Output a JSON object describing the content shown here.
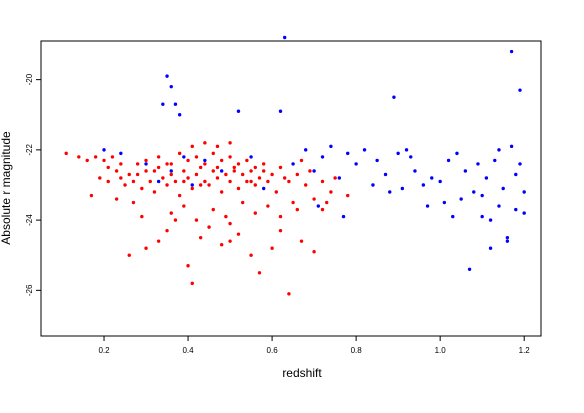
{
  "chart_data": {
    "type": "scatter",
    "title": "",
    "xlabel": "redshift",
    "ylabel": "Absolute r magnitude",
    "xlim": [
      0.05,
      1.24
    ],
    "ylim": [
      -27.3,
      -18.9
    ],
    "y_reversed": true,
    "grid": false,
    "x_ticks": [
      {
        "value": 0.2,
        "label": "0.2"
      },
      {
        "value": 0.4,
        "label": "0.4"
      },
      {
        "value": 0.6,
        "label": "0.6"
      },
      {
        "value": 0.8,
        "label": "0.8"
      },
      {
        "value": 1.0,
        "label": "1.0"
      },
      {
        "value": 1.2,
        "label": "1.2"
      }
    ],
    "y_ticks": [
      {
        "value": -20,
        "label": "-20"
      },
      {
        "value": -22,
        "label": "-22"
      },
      {
        "value": -24,
        "label": "-24"
      },
      {
        "value": -26,
        "label": "-26"
      }
    ],
    "series": [
      {
        "color": "#ff0000",
        "points": [
          [
            0.11,
            -22.1
          ],
          [
            0.14,
            -22.2
          ],
          [
            0.16,
            -22.3
          ],
          [
            0.17,
            -23.3
          ],
          [
            0.18,
            -22.2
          ],
          [
            0.19,
            -22.8
          ],
          [
            0.2,
            -22.3
          ],
          [
            0.21,
            -22.5
          ],
          [
            0.22,
            -22.2
          ],
          [
            0.23,
            -22.6
          ],
          [
            0.24,
            -22.8
          ],
          [
            0.25,
            -23.0
          ],
          [
            0.26,
            -22.7
          ],
          [
            0.27,
            -22.9
          ],
          [
            0.28,
            -22.4
          ],
          [
            0.29,
            -23.1
          ],
          [
            0.3,
            -22.6
          ],
          [
            0.31,
            -22.9
          ],
          [
            0.32,
            -23.2
          ],
          [
            0.33,
            -22.5
          ],
          [
            0.34,
            -22.8
          ],
          [
            0.35,
            -23.0
          ],
          [
            0.36,
            -22.4
          ],
          [
            0.37,
            -22.9
          ],
          [
            0.38,
            -23.3
          ],
          [
            0.39,
            -22.6
          ],
          [
            0.4,
            -22.8
          ],
          [
            0.41,
            -23.1
          ],
          [
            0.42,
            -22.7
          ],
          [
            0.43,
            -22.5
          ],
          [
            0.44,
            -22.9
          ],
          [
            0.45,
            -23.0
          ],
          [
            0.46,
            -22.6
          ],
          [
            0.47,
            -22.8
          ],
          [
            0.48,
            -23.2
          ],
          [
            0.49,
            -22.7
          ],
          [
            0.5,
            -22.9
          ],
          [
            0.51,
            -22.5
          ],
          [
            0.52,
            -23.1
          ],
          [
            0.53,
            -22.7
          ],
          [
            0.54,
            -22.9
          ],
          [
            0.55,
            -22.6
          ],
          [
            0.56,
            -23.0
          ],
          [
            0.57,
            -22.8
          ],
          [
            0.58,
            -22.6
          ],
          [
            0.59,
            -22.9
          ],
          [
            0.61,
            -23.2
          ],
          [
            0.63,
            -22.8
          ],
          [
            0.65,
            -23.5
          ],
          [
            0.68,
            -23.0
          ],
          [
            0.7,
            -23.4
          ],
          [
            0.72,
            -23.7
          ],
          [
            0.74,
            -23.2
          ],
          [
            0.78,
            -23.3
          ],
          [
            0.3,
            -22.3
          ],
          [
            0.33,
            -22.2
          ],
          [
            0.35,
            -22.4
          ],
          [
            0.38,
            -22.1
          ],
          [
            0.4,
            -22.3
          ],
          [
            0.42,
            -22.2
          ],
          [
            0.44,
            -22.4
          ],
          [
            0.46,
            -22.1
          ],
          [
            0.48,
            -22.3
          ],
          [
            0.5,
            -22.2
          ],
          [
            0.52,
            -22.4
          ],
          [
            0.54,
            -22.3
          ],
          [
            0.56,
            -22.5
          ],
          [
            0.58,
            -22.4
          ],
          [
            0.41,
            -21.9
          ],
          [
            0.44,
            -21.8
          ],
          [
            0.47,
            -21.9
          ],
          [
            0.5,
            -21.8
          ],
          [
            0.26,
            -25.0
          ],
          [
            0.3,
            -24.8
          ],
          [
            0.33,
            -24.6
          ],
          [
            0.35,
            -24.3
          ],
          [
            0.37,
            -24.0
          ],
          [
            0.4,
            -25.3
          ],
          [
            0.43,
            -24.5
          ],
          [
            0.45,
            -24.2
          ],
          [
            0.48,
            -24.7
          ],
          [
            0.5,
            -24.1
          ],
          [
            0.52,
            -24.4
          ],
          [
            0.55,
            -25.0
          ],
          [
            0.57,
            -25.5
          ],
          [
            0.6,
            -24.8
          ],
          [
            0.62,
            -24.3
          ],
          [
            0.64,
            -26.1
          ],
          [
            0.67,
            -24.6
          ],
          [
            0.7,
            -24.9
          ],
          [
            0.36,
            -23.8
          ],
          [
            0.39,
            -23.6
          ],
          [
            0.42,
            -24.0
          ],
          [
            0.46,
            -23.7
          ],
          [
            0.49,
            -23.9
          ],
          [
            0.53,
            -23.5
          ],
          [
            0.56,
            -23.8
          ],
          [
            0.59,
            -23.6
          ],
          [
            0.62,
            -23.9
          ],
          [
            0.66,
            -23.7
          ],
          [
            0.27,
            -23.5
          ],
          [
            0.29,
            -23.9
          ],
          [
            0.41,
            -25.8
          ],
          [
            0.5,
            -24.6
          ],
          [
            0.23,
            -23.4
          ],
          [
            0.21,
            -22.9
          ],
          [
            0.24,
            -22.4
          ],
          [
            0.28,
            -22.7
          ],
          [
            0.32,
            -22.6
          ],
          [
            0.36,
            -22.7
          ],
          [
            0.39,
            -22.9
          ],
          [
            0.43,
            -23.0
          ],
          [
            0.47,
            -22.5
          ],
          [
            0.51,
            -22.6
          ],
          [
            0.55,
            -22.9
          ],
          [
            0.6,
            -22.7
          ],
          [
            0.62,
            -22.5
          ],
          [
            0.64,
            -22.9
          ],
          [
            0.66,
            -22.7
          ],
          [
            0.69,
            -22.6
          ],
          [
            0.72,
            -22.9
          ],
          [
            0.75,
            -22.8
          ],
          [
            0.67,
            -22.3
          ],
          [
            0.73,
            -23.5
          ]
        ]
      },
      {
        "color": "#0000ff",
        "points": [
          [
            0.63,
            -18.8
          ],
          [
            0.35,
            -19.9
          ],
          [
            0.36,
            -20.2
          ],
          [
            0.34,
            -20.7
          ],
          [
            0.37,
            -20.7
          ],
          [
            0.38,
            -21.0
          ],
          [
            0.52,
            -20.9
          ],
          [
            0.62,
            -20.9
          ],
          [
            0.2,
            -22.0
          ],
          [
            0.24,
            -22.1
          ],
          [
            0.3,
            -22.4
          ],
          [
            0.33,
            -22.9
          ],
          [
            0.36,
            -22.6
          ],
          [
            0.39,
            -22.2
          ],
          [
            0.41,
            -23.0
          ],
          [
            0.44,
            -22.3
          ],
          [
            0.48,
            -22.6
          ],
          [
            0.55,
            -22.2
          ],
          [
            0.58,
            -23.1
          ],
          [
            0.65,
            -22.4
          ],
          [
            0.68,
            -22.0
          ],
          [
            0.7,
            -22.6
          ],
          [
            0.71,
            -23.6
          ],
          [
            0.72,
            -22.2
          ],
          [
            0.74,
            -21.9
          ],
          [
            0.76,
            -22.8
          ],
          [
            0.77,
            -23.9
          ],
          [
            0.78,
            -22.1
          ],
          [
            0.8,
            -22.4
          ],
          [
            0.82,
            -22.0
          ],
          [
            0.84,
            -23.0
          ],
          [
            0.85,
            -22.3
          ],
          [
            0.87,
            -22.7
          ],
          [
            0.88,
            -23.2
          ],
          [
            0.89,
            -20.5
          ],
          [
            0.9,
            -22.1
          ],
          [
            0.91,
            -23.1
          ],
          [
            0.92,
            -22.0
          ],
          [
            0.93,
            -22.2
          ],
          [
            0.94,
            -22.6
          ],
          [
            0.96,
            -23.0
          ],
          [
            0.97,
            -23.6
          ],
          [
            0.98,
            -22.8
          ],
          [
            1.0,
            -22.9
          ],
          [
            1.01,
            -23.5
          ],
          [
            1.02,
            -22.3
          ],
          [
            1.03,
            -23.9
          ],
          [
            1.04,
            -22.1
          ],
          [
            1.05,
            -23.4
          ],
          [
            1.06,
            -22.6
          ],
          [
            1.07,
            -25.4
          ],
          [
            1.08,
            -23.2
          ],
          [
            1.09,
            -22.4
          ],
          [
            1.1,
            -23.9
          ],
          [
            1.11,
            -22.8
          ],
          [
            1.12,
            -24.0
          ],
          [
            1.12,
            -24.8
          ],
          [
            1.13,
            -22.3
          ],
          [
            1.14,
            -23.6
          ],
          [
            1.15,
            -23.1
          ],
          [
            1.16,
            -24.5
          ],
          [
            1.16,
            -24.6
          ],
          [
            1.17,
            -21.9
          ],
          [
            1.17,
            -19.2
          ],
          [
            1.18,
            -22.7
          ],
          [
            1.18,
            -23.7
          ],
          [
            1.19,
            -22.4
          ],
          [
            1.19,
            -20.3
          ],
          [
            1.2,
            -23.2
          ],
          [
            1.2,
            -23.8
          ],
          [
            1.1,
            -23.3
          ],
          [
            1.14,
            -22.0
          ]
        ]
      }
    ]
  }
}
